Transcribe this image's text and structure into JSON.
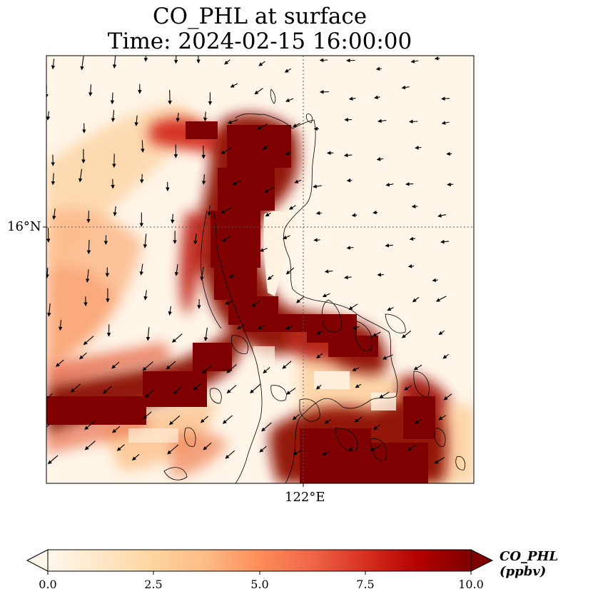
{
  "title": {
    "line1": "CO_PHL at surface",
    "line2": "Time: 2024-02-15 16:00:00"
  },
  "axes": {
    "lat_tick": "16°N",
    "lon_tick": "122°E"
  },
  "colorbar": {
    "label": "CO_PHL (ppbv)",
    "ticks": [
      "0.0",
      "2.5",
      "5.0",
      "7.5",
      "10.0"
    ],
    "min": 0,
    "max": 10,
    "extend": "both",
    "colormap": "OrRd",
    "colors": [
      "#fff7ec",
      "#fee8c8",
      "#fdd49e",
      "#fdbb84",
      "#fc8d59",
      "#ef6548",
      "#d7301f",
      "#b30000",
      "#7f0000"
    ]
  },
  "map": {
    "gridlines": "dotted at 16°N and 122°E",
    "field_description_colors": {
      "background": "#fff5e8",
      "max": "#7f0000"
    }
  }
}
